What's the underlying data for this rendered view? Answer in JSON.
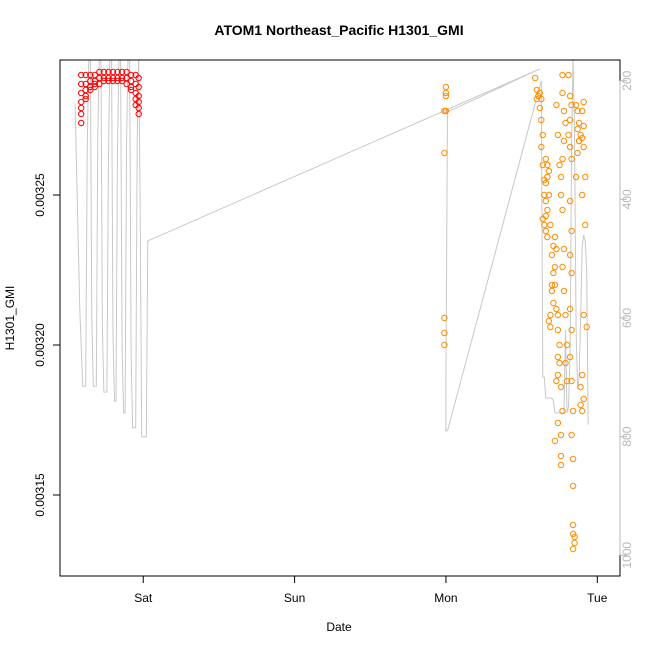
{
  "chart_data": {
    "type": "scatter",
    "title": "ATOM1 Northeast_Pacific H1301_GMI",
    "xlabel": "Date",
    "ylabel": "H1301_GMI",
    "x_ticks": [
      {
        "label": "Sat",
        "day": 1
      },
      {
        "label": "Sun",
        "day": 2
      },
      {
        "label": "Mon",
        "day": 3
      },
      {
        "label": "Tue",
        "day": 4
      }
    ],
    "xlim_days": [
      0.45,
      4.15
    ],
    "ylim": [
      0.003123,
      0.003295
    ],
    "y_ticks": [
      {
        "label": "0.00315",
        "value": 0.00315
      },
      {
        "label": "0.00320",
        "value": 0.0032
      },
      {
        "label": "0.00325",
        "value": 0.00325
      }
    ],
    "right_axis": {
      "label": "",
      "color": "#b8b8b8",
      "reversed": true,
      "ylim": [
        1035,
        165
      ],
      "ticks": [
        {
          "label": "200",
          "value": 200
        },
        {
          "label": "400",
          "value": 400
        },
        {
          "label": "600",
          "value": 600
        },
        {
          "label": "800",
          "value": 800
        },
        {
          "label": "1000",
          "value": 1000
        }
      ]
    },
    "series": [
      {
        "color": "#ff0000",
        "marker": "circle-open",
        "points": [
          [
            0.59,
            0.00329
          ],
          [
            0.59,
            0.003287
          ],
          [
            0.59,
            0.003284
          ],
          [
            0.59,
            0.003281
          ],
          [
            0.59,
            0.003279
          ],
          [
            0.59,
            0.003277
          ],
          [
            0.59,
            0.003274
          ],
          [
            0.62,
            0.00329
          ],
          [
            0.62,
            0.003287
          ],
          [
            0.62,
            0.003285
          ],
          [
            0.62,
            0.003283
          ],
          [
            0.62,
            0.003282
          ],
          [
            0.65,
            0.00329
          ],
          [
            0.65,
            0.003288
          ],
          [
            0.65,
            0.003286
          ],
          [
            0.65,
            0.003285
          ],
          [
            0.68,
            0.00329
          ],
          [
            0.68,
            0.003288
          ],
          [
            0.68,
            0.003287
          ],
          [
            0.68,
            0.003286
          ],
          [
            0.71,
            0.003291
          ],
          [
            0.71,
            0.003289
          ],
          [
            0.71,
            0.003287
          ],
          [
            0.74,
            0.003291
          ],
          [
            0.74,
            0.003289
          ],
          [
            0.74,
            0.003288
          ],
          [
            0.77,
            0.003291
          ],
          [
            0.77,
            0.003289
          ],
          [
            0.77,
            0.003288
          ],
          [
            0.8,
            0.003291
          ],
          [
            0.8,
            0.003289
          ],
          [
            0.8,
            0.003288
          ],
          [
            0.83,
            0.003291
          ],
          [
            0.83,
            0.003289
          ],
          [
            0.83,
            0.003288
          ],
          [
            0.86,
            0.003291
          ],
          [
            0.86,
            0.003289
          ],
          [
            0.86,
            0.003288
          ],
          [
            0.89,
            0.003291
          ],
          [
            0.89,
            0.003289
          ],
          [
            0.89,
            0.003287
          ],
          [
            0.92,
            0.00329
          ],
          [
            0.92,
            0.003288
          ],
          [
            0.92,
            0.003286
          ],
          [
            0.92,
            0.003285
          ],
          [
            0.95,
            0.00329
          ],
          [
            0.95,
            0.003287
          ],
          [
            0.95,
            0.003284
          ],
          [
            0.95,
            0.003282
          ],
          [
            0.95,
            0.00328
          ],
          [
            0.97,
            0.003289
          ],
          [
            0.97,
            0.003286
          ],
          [
            0.97,
            0.003283
          ],
          [
            0.97,
            0.003281
          ],
          [
            0.97,
            0.003279
          ],
          [
            0.97,
            0.003277
          ]
        ]
      },
      {
        "color": "#ff8c00",
        "marker": "circle-open",
        "points": [
          [
            3.0,
            0.003286
          ],
          [
            3.0,
            0.003284
          ],
          [
            3.0,
            0.003283
          ],
          [
            2.99,
            0.003278
          ],
          [
            3.0,
            0.003278
          ],
          [
            2.99,
            0.003264
          ],
          [
            2.99,
            0.003209
          ],
          [
            2.99,
            0.003204
          ],
          [
            2.99,
            0.0032
          ],
          [
            3.59,
            0.003289
          ],
          [
            3.6,
            0.003285
          ],
          [
            3.61,
            0.003283
          ],
          [
            3.6,
            0.003282
          ],
          [
            3.62,
            0.003284
          ],
          [
            3.63,
            0.003282
          ],
          [
            3.62,
            0.003279
          ],
          [
            3.63,
            0.003275
          ],
          [
            3.64,
            0.00327
          ],
          [
            3.63,
            0.003266
          ],
          [
            3.64,
            0.00326
          ],
          [
            3.66,
            0.003262
          ],
          [
            3.67,
            0.00326
          ],
          [
            3.68,
            0.003258
          ],
          [
            3.67,
            0.003256
          ],
          [
            3.66,
            0.003254
          ],
          [
            3.65,
            0.00325
          ],
          [
            3.66,
            0.003248
          ],
          [
            3.67,
            0.003245
          ],
          [
            3.66,
            0.003243
          ],
          [
            3.65,
            0.00324
          ],
          [
            3.66,
            0.003238
          ],
          [
            3.67,
            0.003236
          ],
          [
            3.68,
            0.00325
          ],
          [
            3.64,
            0.003242
          ],
          [
            3.65,
            0.003255
          ],
          [
            3.69,
            0.00324
          ],
          [
            3.7,
            0.00323
          ],
          [
            3.71,
            0.003224
          ],
          [
            3.7,
            0.003218
          ],
          [
            3.69,
            0.00321
          ],
          [
            3.68,
            0.003208
          ],
          [
            3.69,
            0.003206
          ],
          [
            3.71,
            0.003214
          ],
          [
            3.7,
            0.00322
          ],
          [
            3.72,
            0.003236
          ],
          [
            3.71,
            0.003233
          ],
          [
            3.73,
            0.003232
          ],
          [
            3.72,
            0.003226
          ],
          [
            3.72,
            0.00322
          ],
          [
            3.73,
            0.003212
          ],
          [
            3.74,
            0.00321
          ],
          [
            3.74,
            0.003205
          ],
          [
            3.75,
            0.0032
          ],
          [
            3.74,
            0.003196
          ],
          [
            3.75,
            0.003194
          ],
          [
            3.74,
            0.00319
          ],
          [
            3.73,
            0.003188
          ],
          [
            3.76,
            0.003186
          ],
          [
            3.77,
            0.003178
          ],
          [
            3.76,
            0.00317
          ],
          [
            3.74,
            0.003174
          ],
          [
            3.72,
            0.003168
          ],
          [
            3.76,
            0.003163
          ],
          [
            3.76,
            0.00316
          ],
          [
            3.74,
            0.00327
          ],
          [
            3.75,
            0.00326
          ],
          [
            3.73,
            0.00328
          ],
          [
            3.77,
            0.00329
          ],
          [
            3.77,
            0.003284
          ],
          [
            3.78,
            0.003278
          ],
          [
            3.79,
            0.003274
          ],
          [
            3.78,
            0.003268
          ],
          [
            3.77,
            0.003262
          ],
          [
            3.76,
            0.003256
          ],
          [
            3.76,
            0.00325
          ],
          [
            3.77,
            0.003245
          ],
          [
            3.78,
            0.003232
          ],
          [
            3.77,
            0.003226
          ],
          [
            3.78,
            0.003218
          ],
          [
            3.79,
            0.00321
          ],
          [
            3.8,
            0.0032
          ],
          [
            3.79,
            0.003194
          ],
          [
            3.8,
            0.003188
          ],
          [
            3.81,
            0.00329
          ],
          [
            3.82,
            0.003283
          ],
          [
            3.83,
            0.00328
          ],
          [
            3.82,
            0.003275
          ],
          [
            3.81,
            0.00327
          ],
          [
            3.82,
            0.003266
          ],
          [
            3.83,
            0.003262
          ],
          [
            3.82,
            0.003248
          ],
          [
            3.83,
            0.003238
          ],
          [
            3.82,
            0.00323
          ],
          [
            3.83,
            0.003224
          ],
          [
            3.82,
            0.003212
          ],
          [
            3.83,
            0.003205
          ],
          [
            3.82,
            0.003196
          ],
          [
            3.83,
            0.003188
          ],
          [
            3.84,
            0.003178
          ],
          [
            3.83,
            0.00317
          ],
          [
            3.84,
            0.003162
          ],
          [
            3.84,
            0.003153
          ],
          [
            3.84,
            0.00314
          ],
          [
            3.84,
            0.003137
          ],
          [
            3.85,
            0.003136
          ],
          [
            3.85,
            0.003134
          ],
          [
            3.84,
            0.003132
          ],
          [
            3.86,
            0.00328
          ],
          [
            3.87,
            0.003278
          ],
          [
            3.88,
            0.003274
          ],
          [
            3.87,
            0.003272
          ],
          [
            3.89,
            0.00327
          ],
          [
            3.88,
            0.003268
          ],
          [
            3.87,
            0.003264
          ],
          [
            3.9,
            0.00325
          ],
          [
            3.86,
            0.003256
          ],
          [
            3.88,
            0.003268
          ],
          [
            3.91,
            0.003281
          ],
          [
            3.9,
            0.003278
          ],
          [
            3.91,
            0.003273
          ],
          [
            3.9,
            0.003269
          ],
          [
            3.91,
            0.003266
          ],
          [
            3.92,
            0.003256
          ],
          [
            3.91,
            0.00321
          ],
          [
            3.9,
            0.00319
          ],
          [
            3.89,
            0.003186
          ],
          [
            3.91,
            0.003182
          ],
          [
            3.9,
            0.003178
          ],
          [
            3.89,
            0.00318
          ],
          [
            3.92,
            0.00324
          ],
          [
            3.93,
            0.003206
          ]
        ]
      }
    ],
    "depth_profile": [
      [
        0.55,
        240
      ],
      [
        0.58,
        580
      ],
      [
        0.6,
        715
      ],
      [
        0.62,
        715
      ],
      [
        0.63,
        320
      ],
      [
        0.64,
        160
      ],
      [
        0.65,
        140
      ],
      [
        0.66,
        600
      ],
      [
        0.67,
        715
      ],
      [
        0.69,
        715
      ],
      [
        0.7,
        290
      ],
      [
        0.71,
        150
      ],
      [
        0.72,
        140
      ],
      [
        0.73,
        620
      ],
      [
        0.74,
        725
      ],
      [
        0.76,
        725
      ],
      [
        0.77,
        340
      ],
      [
        0.78,
        150
      ],
      [
        0.79,
        140
      ],
      [
        0.8,
        630
      ],
      [
        0.81,
        740
      ],
      [
        0.82,
        740
      ],
      [
        0.83,
        310
      ],
      [
        0.84,
        160
      ],
      [
        0.85,
        140
      ],
      [
        0.86,
        650
      ],
      [
        0.87,
        760
      ],
      [
        0.88,
        760
      ],
      [
        0.89,
        300
      ],
      [
        0.9,
        150
      ],
      [
        0.91,
        140
      ],
      [
        0.92,
        660
      ],
      [
        0.93,
        785
      ],
      [
        0.95,
        785
      ],
      [
        0.96,
        300
      ],
      [
        0.97,
        150
      ],
      [
        0.98,
        420
      ],
      [
        0.99,
        800
      ],
      [
        1.0,
        800
      ],
      [
        1.01,
        800
      ],
      [
        1.02,
        800
      ],
      [
        1.03,
        470
      ],
      [
        3.62,
        180
      ],
      [
        2.99,
        255
      ],
      [
        3.01,
        250
      ],
      [
        3.0,
        710
      ],
      [
        3.0,
        790
      ],
      [
        3.01,
        790
      ],
      [
        3.63,
        200
      ],
      [
        3.64,
        700
      ],
      [
        3.65,
        700
      ],
      [
        3.66,
        735
      ],
      [
        3.67,
        735
      ],
      [
        3.7,
        735
      ],
      [
        3.71,
        740
      ],
      [
        3.72,
        760
      ],
      [
        3.78,
        760
      ],
      [
        3.79,
        620
      ],
      [
        3.8,
        760
      ],
      [
        3.81,
        750
      ],
      [
        3.82,
        660
      ],
      [
        3.83,
        300
      ],
      [
        3.84,
        160
      ],
      [
        3.85,
        300
      ],
      [
        3.86,
        620
      ],
      [
        3.87,
        720
      ],
      [
        3.88,
        700
      ],
      [
        3.89,
        600
      ],
      [
        3.9,
        480
      ],
      [
        3.91,
        460
      ],
      [
        3.92,
        470
      ],
      [
        3.93,
        520
      ],
      [
        3.94,
        780
      ]
    ]
  }
}
